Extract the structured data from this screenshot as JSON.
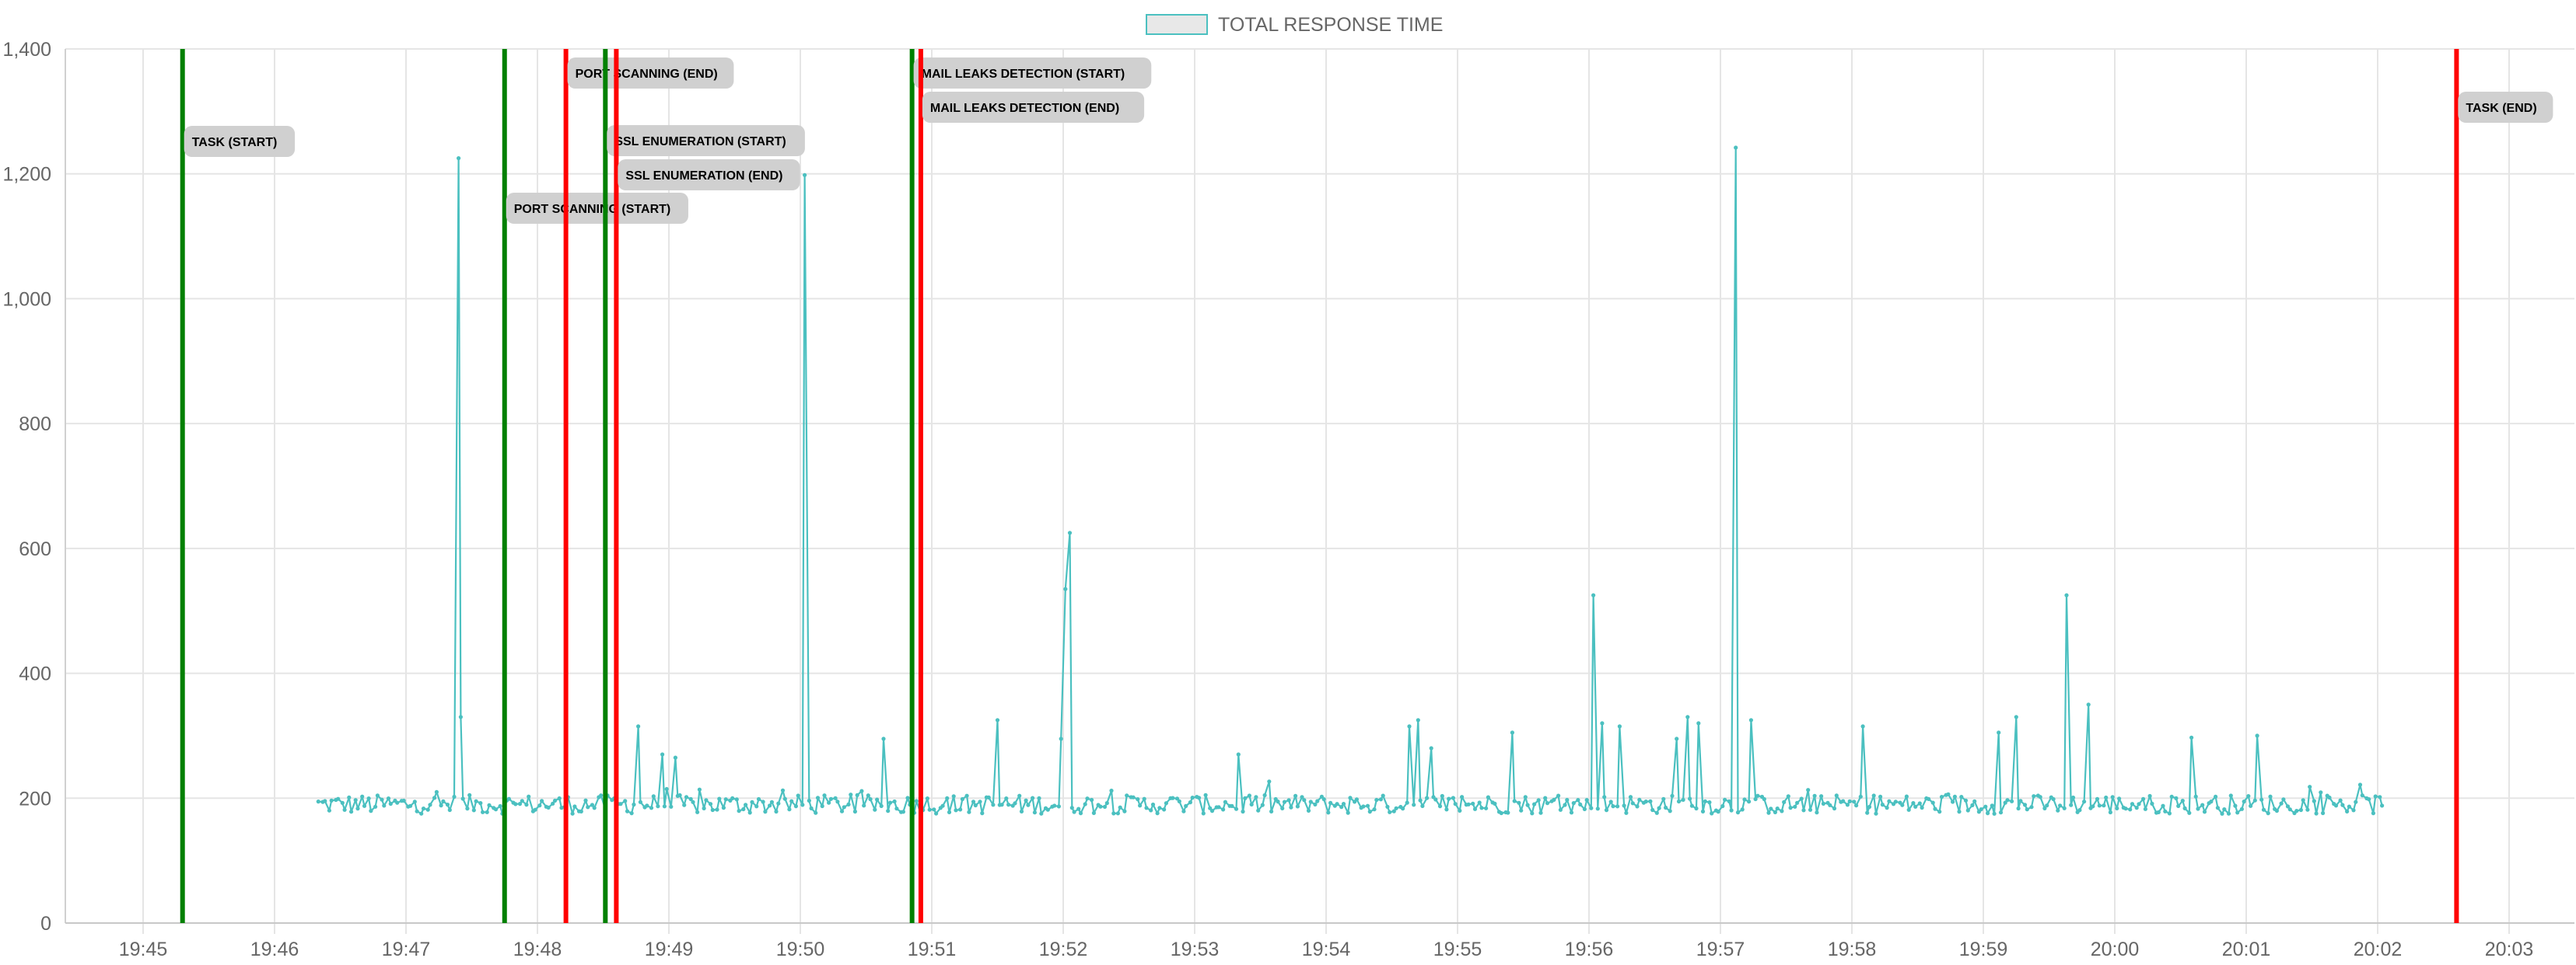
{
  "chart_data": {
    "type": "line",
    "title": "",
    "xlabel": "",
    "ylabel": "",
    "xlim": [
      19.72,
      20.08
    ],
    "ylim": [
      0,
      1400
    ],
    "yticks": [
      0,
      200,
      400,
      600,
      800,
      1000,
      1200,
      1400
    ],
    "ytick_labels": [
      "0",
      "200",
      "400",
      "600",
      "800",
      "1,000",
      "1,200",
      "1,400"
    ],
    "xticks": [
      "19:45",
      "19:46",
      "19:47",
      "19:48",
      "19:49",
      "19:50",
      "19:51",
      "19:52",
      "19:53",
      "19:54",
      "19:55",
      "19:56",
      "19:57",
      "19:58",
      "19:59",
      "20:00",
      "20:01",
      "20:02",
      "20:03"
    ],
    "grid": true,
    "legend": {
      "position": "top-center",
      "entries": [
        "TOTAL RESPONSE TIME"
      ]
    },
    "series": [
      {
        "name": "TOTAL RESPONSE TIME",
        "color": "#4bc0c0",
        "x_start": "19:46:20",
        "x_end": "20:02:02",
        "baseline_range": [
          175,
          205
        ],
        "points": [
          [
            "19:46:20",
            185
          ],
          [
            "19:46:40",
            190
          ],
          [
            "19:47:00",
            188
          ],
          [
            "19:47:15",
            195
          ],
          [
            "19:47:24",
            1225
          ],
          [
            "19:47:25",
            330
          ],
          [
            "19:47:26",
            195
          ],
          [
            "19:47:40",
            185
          ],
          [
            "19:48:00",
            190
          ],
          [
            "19:48:20",
            192
          ],
          [
            "19:48:46",
            315
          ],
          [
            "19:48:57",
            270
          ],
          [
            "19:49:03",
            265
          ],
          [
            "19:49:30",
            188
          ],
          [
            "19:50:02",
            1198
          ],
          [
            "19:50:05",
            190
          ],
          [
            "19:50:38",
            295
          ],
          [
            "19:51:00",
            192
          ],
          [
            "19:51:30",
            325
          ],
          [
            "19:51:59",
            295
          ],
          [
            "19:52:01",
            535
          ],
          [
            "19:52:03",
            625
          ],
          [
            "19:52:05",
            215
          ],
          [
            "19:52:30",
            190
          ],
          [
            "19:53:20",
            270
          ],
          [
            "19:53:50",
            195
          ],
          [
            "19:54:38",
            315
          ],
          [
            "19:54:42",
            325
          ],
          [
            "19:54:48",
            280
          ],
          [
            "19:55:25",
            305
          ],
          [
            "19:56:02",
            525
          ],
          [
            "19:56:06",
            320
          ],
          [
            "19:56:14",
            315
          ],
          [
            "19:56:40",
            295
          ],
          [
            "19:56:45",
            330
          ],
          [
            "19:56:50",
            320
          ],
          [
            "19:57:07",
            1242
          ],
          [
            "19:57:14",
            325
          ],
          [
            "19:57:30",
            190
          ],
          [
            "19:58:05",
            315
          ],
          [
            "19:58:40",
            195
          ],
          [
            "19:59:07",
            305
          ],
          [
            "19:59:15",
            330
          ],
          [
            "19:59:38",
            525
          ],
          [
            "19:59:48",
            350
          ],
          [
            "20:00:10",
            195
          ],
          [
            "20:00:35",
            297
          ],
          [
            "20:01:05",
            300
          ],
          [
            "20:01:30",
            195
          ],
          [
            "20:02:00",
            195
          ],
          [
            "20:02:02",
            180
          ]
        ]
      }
    ],
    "annotations": [
      {
        "time": "19:45:18",
        "color": "#008000",
        "label": "TASK (START)"
      },
      {
        "time": "19:47:45",
        "color": "#008000",
        "label": "PORT SCANNING (START)"
      },
      {
        "time": "19:48:13",
        "color": "#ff0000",
        "label": "PORT SCANNING (END)"
      },
      {
        "time": "19:48:31",
        "color": "#008000",
        "label": "SSL ENUMERATION (START)"
      },
      {
        "time": "19:48:36",
        "color": "#ff0000",
        "label": "SSL ENUMERATION (END)"
      },
      {
        "time": "19:50:51",
        "color": "#008000",
        "label": "MAIL LEAKS DETECTION (START)"
      },
      {
        "time": "19:50:55",
        "color": "#ff0000",
        "label": "MAIL LEAKS DETECTION (END)"
      },
      {
        "time": "20:02:36",
        "color": "#ff0000",
        "label": "TASK (END)"
      }
    ]
  }
}
